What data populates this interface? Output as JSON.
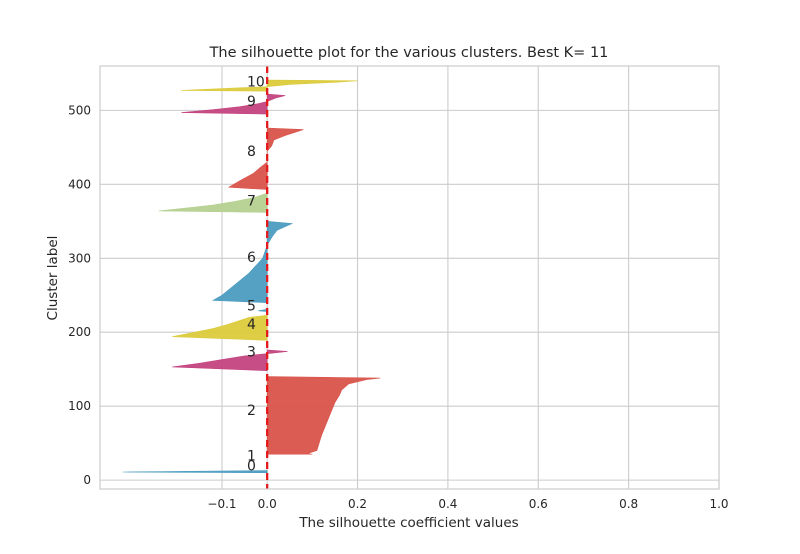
{
  "chart_data": {
    "type": "area",
    "title": "The silhouette plot for the various clusters. Best K= 11",
    "xlabel": "The silhouette coefficient values",
    "ylabel": "Cluster label",
    "xlim": [
      -0.37,
      1.0
    ],
    "ylim": [
      -12,
      560
    ],
    "xticks": [
      -0.1,
      0.0,
      0.2,
      0.4,
      0.6,
      0.8,
      1.0
    ],
    "xtick_labels": [
      "−0.1",
      "0.0",
      "0.2",
      "0.4",
      "0.6",
      "0.8",
      "1.0"
    ],
    "yticks": [
      0,
      100,
      200,
      300,
      400,
      500
    ],
    "ytick_labels": [
      "0",
      "100",
      "200",
      "300",
      "400",
      "500"
    ],
    "grid": true,
    "reference_line": {
      "x": 0.0,
      "style": "dashed",
      "color": "#e41a1c"
    },
    "cluster_labels": [
      {
        "label": "0",
        "y": 20
      },
      {
        "label": "1",
        "y": 33
      },
      {
        "label": "2",
        "y": 95
      },
      {
        "label": "3",
        "y": 174
      },
      {
        "label": "4",
        "y": 211
      },
      {
        "label": "5",
        "y": 236
      },
      {
        "label": "6",
        "y": 302
      },
      {
        "label": "7",
        "y": 378
      },
      {
        "label": "8",
        "y": 445
      },
      {
        "label": "9",
        "y": 513
      },
      {
        "label": "10",
        "y": 539
      }
    ],
    "series": [
      {
        "cluster": "0",
        "color": "#4c9cc0",
        "points": [
          [
            10,
            0.0
          ],
          [
            11,
            -0.32
          ],
          [
            13,
            0.0
          ]
        ]
      },
      {
        "cluster": "1",
        "color": "#7b86b5",
        "points": [
          [
            32,
            0.0
          ],
          [
            33,
            0.0
          ],
          [
            34,
            0.0
          ]
        ]
      },
      {
        "cluster": "2",
        "color": "#d9534a",
        "points": [
          [
            35,
            0.1
          ],
          [
            36,
            0.09
          ],
          [
            40,
            0.11
          ],
          [
            50,
            0.115
          ],
          [
            60,
            0.12
          ],
          [
            75,
            0.13
          ],
          [
            90,
            0.14
          ],
          [
            105,
            0.15
          ],
          [
            115,
            0.16
          ],
          [
            122,
            0.165
          ],
          [
            130,
            0.18
          ],
          [
            136,
            0.22
          ],
          [
            138,
            0.25
          ],
          [
            140,
            0.0
          ]
        ]
      },
      {
        "cluster": "3",
        "color": "#c4437f",
        "points": [
          [
            148,
            0.0
          ],
          [
            153,
            -0.21
          ],
          [
            158,
            -0.15
          ],
          [
            163,
            -0.1
          ],
          [
            168,
            -0.05
          ],
          [
            171,
            0.0
          ],
          [
            174,
            0.045
          ],
          [
            176,
            0.0
          ]
        ]
      },
      {
        "cluster": "4",
        "color": "#dbcb3c",
        "points": [
          [
            189,
            0.0
          ],
          [
            194,
            -0.21
          ],
          [
            200,
            -0.16
          ],
          [
            205,
            -0.12
          ],
          [
            210,
            -0.09
          ],
          [
            214,
            -0.07
          ],
          [
            220,
            -0.04
          ],
          [
            223,
            0.0
          ]
        ]
      },
      {
        "cluster": "5",
        "color": "#4c9cc0",
        "points": [
          [
            228,
            0.0
          ],
          [
            229,
            -0.02
          ],
          [
            231,
            0.0
          ]
        ]
      },
      {
        "cluster": "6",
        "color": "#4c9cc0",
        "points": [
          [
            240,
            0.0
          ],
          [
            243,
            -0.12
          ],
          [
            250,
            -0.1
          ],
          [
            260,
            -0.08
          ],
          [
            270,
            -0.06
          ],
          [
            280,
            -0.04
          ],
          [
            290,
            -0.025
          ],
          [
            300,
            -0.01
          ],
          [
            318,
            0.0
          ],
          [
            330,
            0.012
          ],
          [
            338,
            0.022
          ],
          [
            347,
            0.055
          ],
          [
            350,
            0.0
          ]
        ]
      },
      {
        "cluster": "7",
        "color": "#b5d090",
        "points": [
          [
            362,
            0.0
          ],
          [
            364,
            -0.24
          ],
          [
            368,
            -0.18
          ],
          [
            372,
            -0.12
          ],
          [
            377,
            -0.07
          ],
          [
            382,
            -0.03
          ],
          [
            388,
            0.0
          ]
        ]
      },
      {
        "cluster": "8",
        "color": "#d9534a",
        "points": [
          [
            393,
            0.0
          ],
          [
            396,
            -0.085
          ],
          [
            405,
            -0.06
          ],
          [
            415,
            -0.03
          ],
          [
            423,
            -0.015
          ],
          [
            430,
            0.0
          ],
          [
            445,
            0.0
          ],
          [
            452,
            0.01
          ],
          [
            460,
            0.015
          ],
          [
            466,
            0.04
          ],
          [
            471,
            0.065
          ],
          [
            474,
            0.08
          ],
          [
            476,
            0.0
          ]
        ]
      },
      {
        "cluster": "9",
        "color": "#c4437f",
        "points": [
          [
            495,
            0.0
          ],
          [
            497,
            -0.19
          ],
          [
            501,
            -0.12
          ],
          [
            505,
            -0.06
          ],
          [
            509,
            -0.02
          ],
          [
            512,
            0.0
          ],
          [
            517,
            0.02
          ],
          [
            520,
            0.04
          ],
          [
            522,
            0.0
          ]
        ]
      },
      {
        "cluster": "10",
        "color": "#dbcb3c",
        "points": [
          [
            526,
            0.0
          ],
          [
            527,
            -0.19
          ],
          [
            530,
            -0.08
          ],
          [
            532,
            0.0
          ],
          [
            535,
            0.05
          ],
          [
            538,
            0.15
          ],
          [
            540,
            0.2
          ],
          [
            541,
            0.0
          ]
        ]
      }
    ]
  }
}
